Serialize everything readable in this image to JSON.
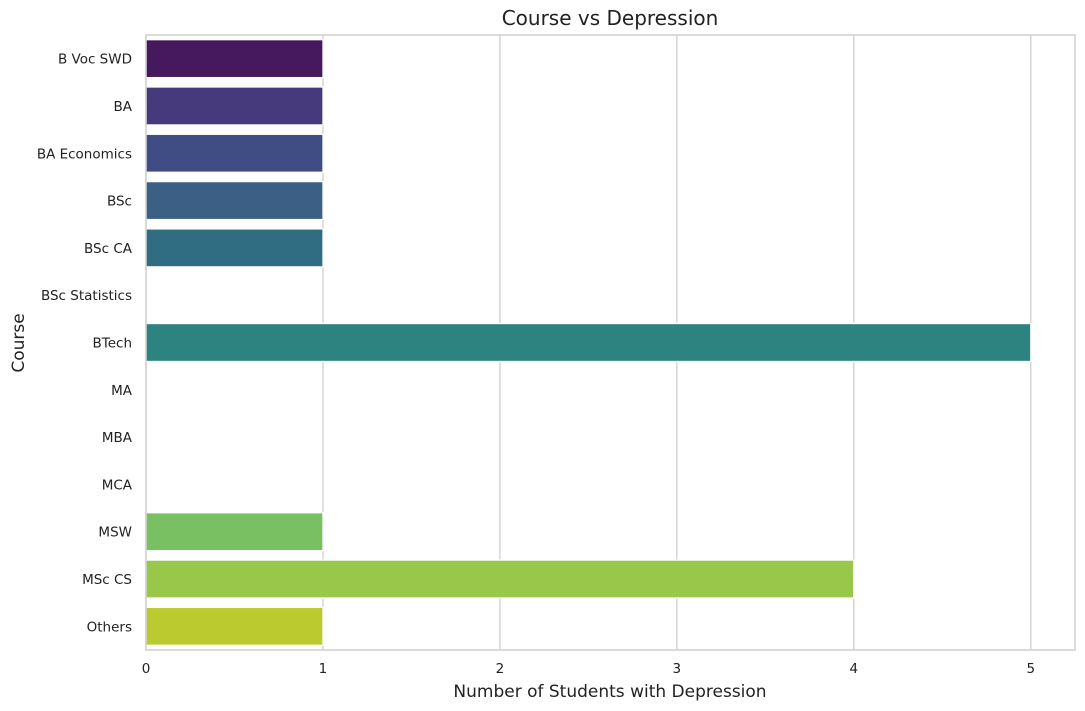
{
  "chart_data": {
    "type": "bar",
    "orientation": "horizontal",
    "title": "Course vs Depression",
    "xlabel": "Number of Students with Depression",
    "ylabel": "Course",
    "categories": [
      "B Voc SWD",
      "BA",
      "BA Economics",
      "BSc",
      "BSc CA",
      "BSc Statistics",
      "BTech",
      "MA",
      "MBA",
      "MCA",
      "MSW",
      "MSc CS",
      "Others"
    ],
    "values": [
      1,
      1,
      1,
      1,
      1,
      0,
      5,
      0,
      0,
      0,
      1,
      4,
      1
    ],
    "colors": [
      "#46195f",
      "#463a7c",
      "#3f4d84",
      "#3c5f86",
      "#316d82",
      "#2b7f82",
      "#2d8380",
      "#45ab6e",
      "#5bb862",
      "#6cc35a",
      "#79c062",
      "#99c74a",
      "#bbcb2f"
    ],
    "xlim": [
      0,
      5.25
    ],
    "xticks": [
      0,
      1,
      2,
      3,
      4,
      5
    ],
    "grid": "vertical"
  }
}
